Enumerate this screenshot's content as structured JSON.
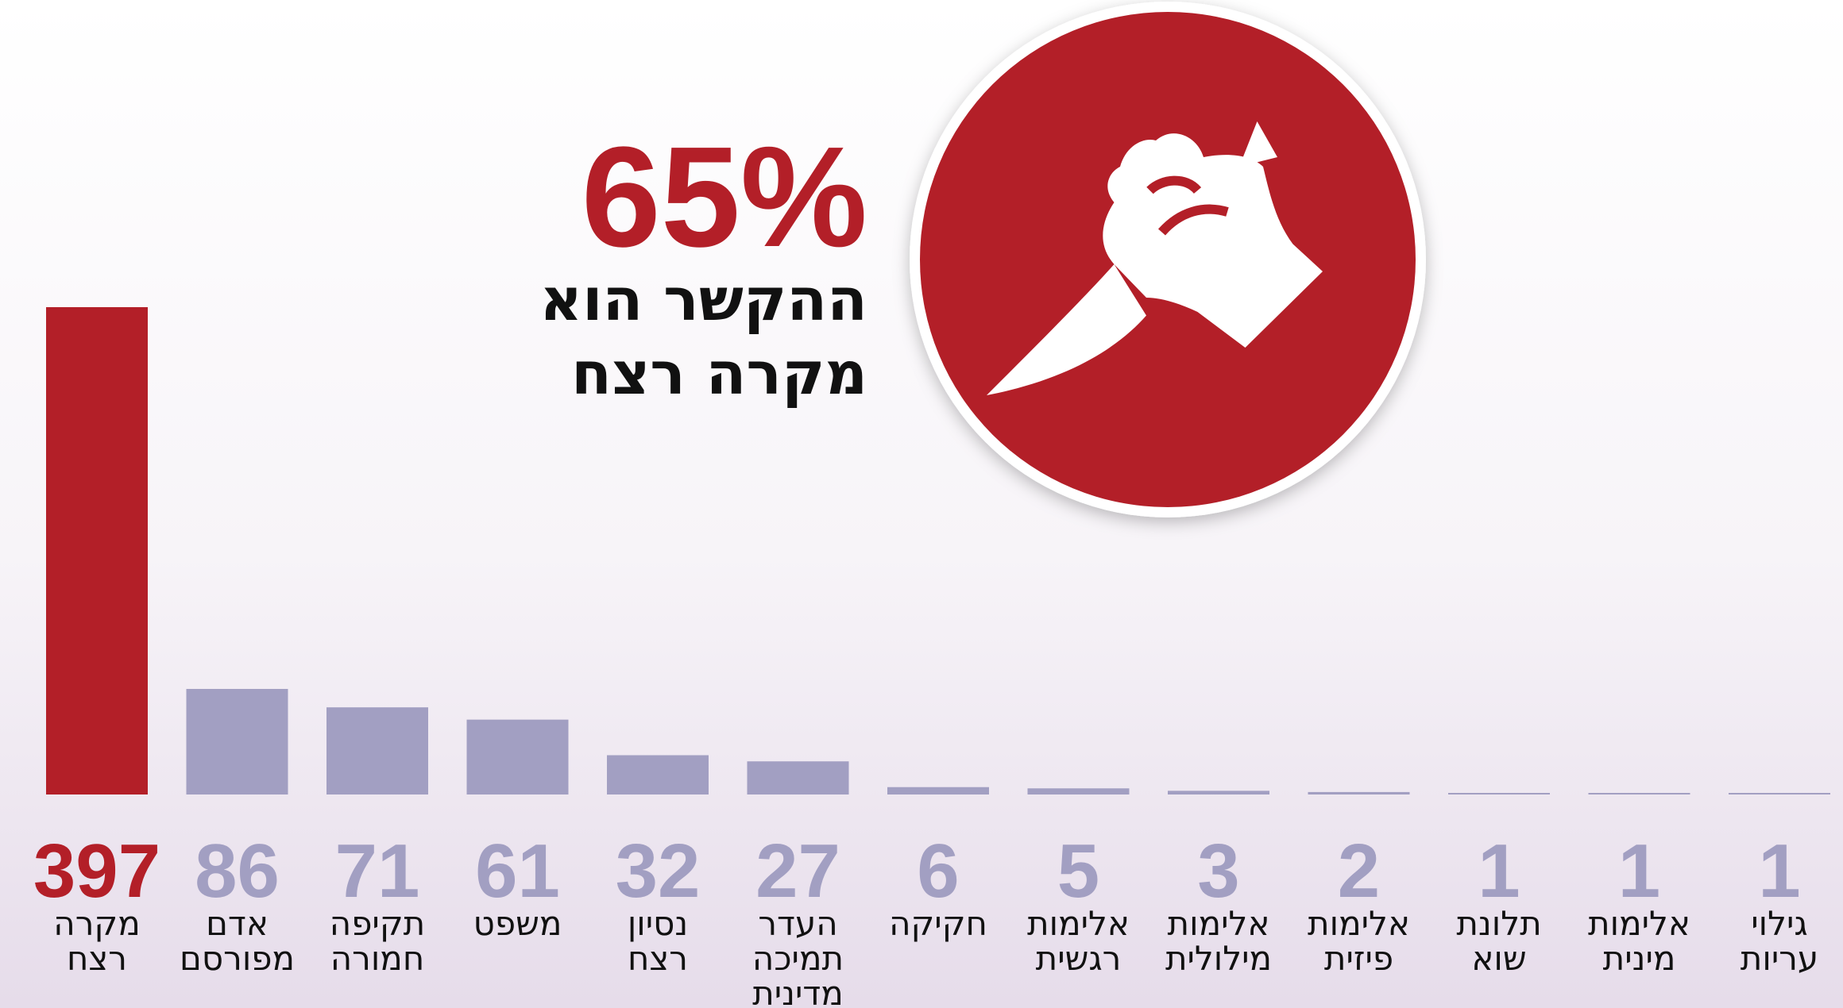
{
  "chart_data": {
    "type": "bar",
    "callout": {
      "figure": "65%",
      "lines": [
        "ההקשר הוא",
        "מקרה רצח"
      ]
    },
    "categories": [
      [
        "מקרה",
        "רצח"
      ],
      [
        "אדם",
        "מפורסם"
      ],
      [
        "תקיפה",
        "חמורה"
      ],
      [
        "משפט"
      ],
      [
        "נסיון",
        "רצח"
      ],
      [
        "העדר",
        "תמיכה",
        "מדינית"
      ],
      [
        "חקיקה"
      ],
      [
        "אלימות",
        "רגשית"
      ],
      [
        "אלימות",
        "מילולית"
      ],
      [
        "אלימות",
        "פיזית"
      ],
      [
        "תלונת",
        "שוא"
      ],
      [
        "אלימות",
        "מינית"
      ],
      [
        "גילוי",
        "עריות"
      ]
    ],
    "values": [
      397,
      86,
      71,
      61,
      32,
      27,
      6,
      5,
      3,
      2,
      1,
      1,
      1
    ],
    "colors": [
      "#b31f28",
      "#a29fc2",
      "#a29fc2",
      "#a29fc2",
      "#a29fc2",
      "#a29fc2",
      "#a29fc2",
      "#a29fc2",
      "#a29fc2",
      "#a29fc2",
      "#a29fc2",
      "#a29fc2",
      "#a29fc2"
    ]
  }
}
